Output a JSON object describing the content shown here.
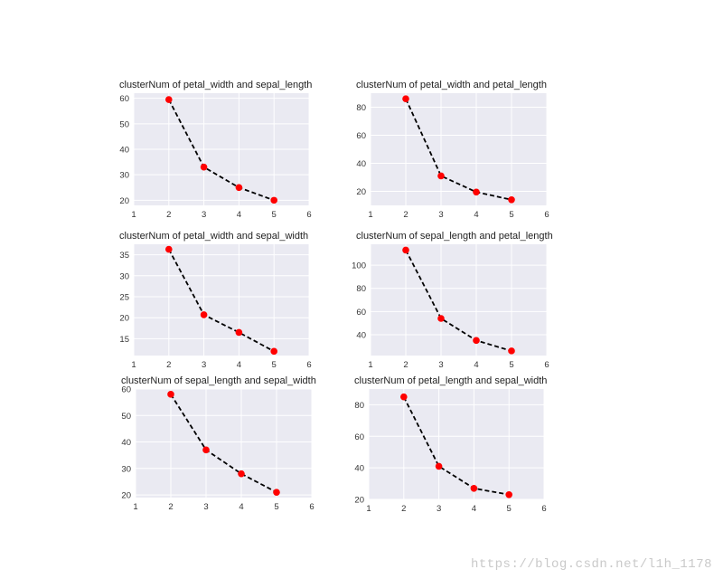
{
  "chart_data": [
    {
      "type": "line",
      "title": "clusterNum of petal_width and sepal_length",
      "x": [
        2,
        3,
        4,
        5
      ],
      "y": [
        59.5,
        33,
        25,
        20
      ],
      "xlim": [
        1,
        6
      ],
      "ylim": [
        18,
        62
      ],
      "xticks": [
        1,
        2,
        3,
        4,
        5,
        6
      ],
      "yticks": [
        20,
        30,
        40,
        50,
        60
      ],
      "grid": true
    },
    {
      "type": "line",
      "title": "clusterNum of petal_width and petal_length",
      "x": [
        2,
        3,
        4,
        5
      ],
      "y": [
        86,
        31,
        19.5,
        14
      ],
      "xlim": [
        1,
        6
      ],
      "ylim": [
        10,
        90
      ],
      "xticks": [
        1,
        2,
        3,
        4,
        5,
        6
      ],
      "yticks": [
        20,
        40,
        60,
        80
      ],
      "grid": true
    },
    {
      "type": "line",
      "title": "clusterNum of petal_width and sepal_width",
      "x": [
        2,
        3,
        4,
        5
      ],
      "y": [
        36.3,
        20.7,
        16.5,
        12
      ],
      "xlim": [
        1,
        6
      ],
      "ylim": [
        11,
        37.5
      ],
      "xticks": [
        1,
        2,
        3,
        4,
        5,
        6
      ],
      "yticks": [
        15,
        20,
        25,
        30,
        35
      ],
      "grid": true
    },
    {
      "type": "line",
      "title": "clusterNum of sepal_length and petal_length",
      "x": [
        2,
        3,
        4,
        5
      ],
      "y": [
        113,
        54,
        35,
        26
      ],
      "xlim": [
        1,
        6
      ],
      "ylim": [
        22,
        118
      ],
      "xticks": [
        1,
        2,
        3,
        4,
        5,
        6
      ],
      "yticks": [
        40,
        60,
        80,
        100
      ],
      "grid": true
    },
    {
      "type": "line",
      "title": "clusterNum of sepal_length and sepal_width",
      "x": [
        2,
        3,
        4,
        5
      ],
      "y": [
        58,
        37,
        28,
        21
      ],
      "xlim": [
        1,
        6
      ],
      "ylim": [
        19,
        60
      ],
      "xticks": [
        1,
        2,
        3,
        4,
        5,
        6
      ],
      "yticks": [
        20,
        30,
        40,
        50,
        60
      ],
      "grid": true
    },
    {
      "type": "line",
      "title": "clusterNum of petal_length and sepal_width",
      "x": [
        2,
        3,
        4,
        5
      ],
      "y": [
        85,
        41,
        27,
        23
      ],
      "xlim": [
        1,
        6
      ],
      "ylim": [
        20,
        90
      ],
      "xticks": [
        1,
        2,
        3,
        4,
        5,
        6
      ],
      "yticks": [
        20,
        40,
        60,
        80
      ],
      "grid": true
    }
  ],
  "style": {
    "background": "#eaeaf2",
    "grid_color": "#ffffff",
    "line_color": "#000000",
    "line_style": "dashed",
    "marker_color": "#ff0000"
  },
  "watermark": "https://blog.csdn.net/l1h_1178"
}
